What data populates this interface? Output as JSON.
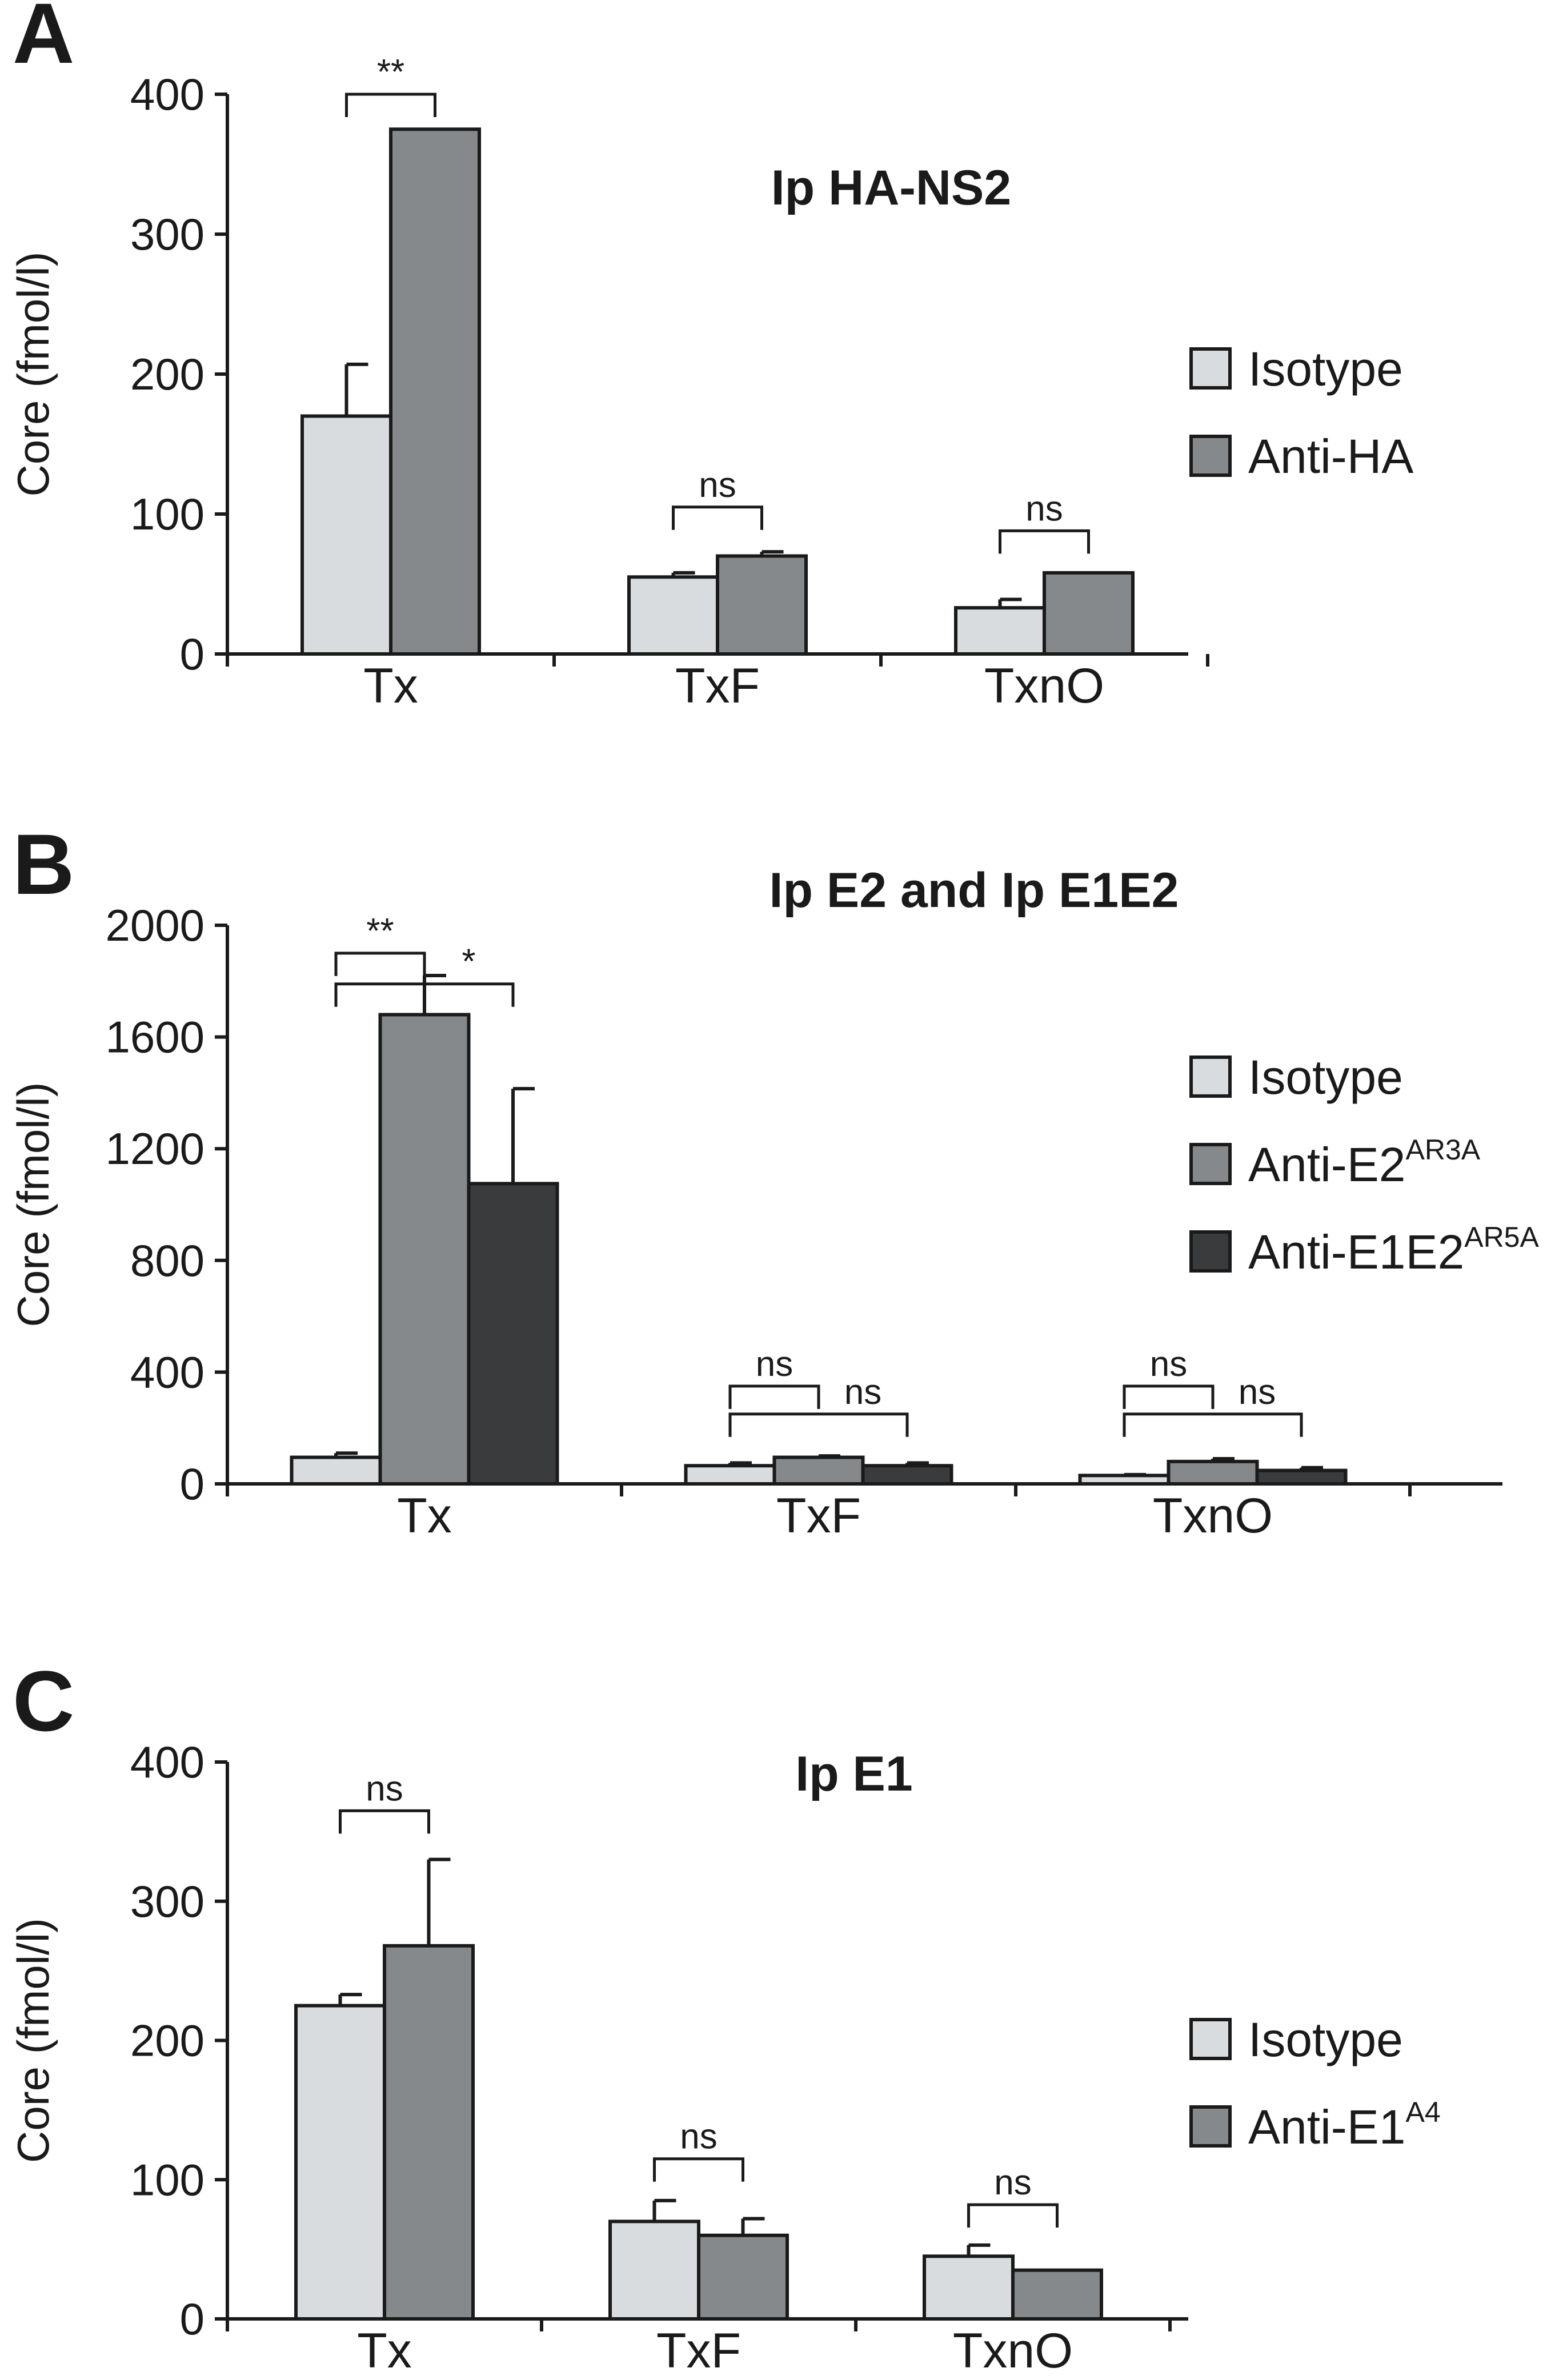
{
  "colors": {
    "isotype": "#d9dcde",
    "anti1": "#86898c",
    "anti2": "#3a3b3d",
    "ink": "#1a1a1a"
  },
  "chart_data": [
    {
      "panel": "A",
      "type": "bar",
      "title": "Ip HA-NS2",
      "ylabel": "Core (fmol/l)",
      "xlabel": "",
      "ylim": [
        0,
        400
      ],
      "yticks": [
        0,
        100,
        200,
        300,
        400
      ],
      "categories": [
        "Tx",
        "TxF",
        "TxnO"
      ],
      "series": [
        {
          "name": "Isotype",
          "sup": "",
          "color": "#d9dcde",
          "values": [
            170,
            55,
            33
          ],
          "errors": [
            37,
            3,
            6
          ]
        },
        {
          "name": "Anti-HA",
          "sup": "",
          "color": "#86898c",
          "values": [
            375,
            70,
            58
          ],
          "errors": [
            0,
            3,
            0
          ]
        }
      ],
      "annotations": [
        {
          "category": 0,
          "from": 0,
          "to": 1,
          "label": "**",
          "value": 400
        },
        {
          "category": 1,
          "from": 0,
          "to": 1,
          "label": "ns",
          "value": 105
        },
        {
          "category": 2,
          "from": 0,
          "to": 1,
          "label": "ns",
          "value": 88
        }
      ]
    },
    {
      "panel": "B",
      "type": "bar",
      "title": "Ip E2 and Ip E1E2",
      "ylabel": "Core (fmol/l)",
      "xlabel": "",
      "ylim": [
        0,
        2000
      ],
      "yticks": [
        0,
        400,
        800,
        1200,
        1600,
        2000
      ],
      "categories": [
        "Tx",
        "TxF",
        "TxnO"
      ],
      "series": [
        {
          "name": "Isotype",
          "sup": "",
          "color": "#d9dcde",
          "values": [
            95,
            65,
            30
          ],
          "errors": [
            15,
            10,
            3
          ]
        },
        {
          "name": "Anti-E2",
          "sup": "AR3A",
          "color": "#86898c",
          "values": [
            1680,
            95,
            80
          ],
          "errors": [
            140,
            5,
            10
          ]
        },
        {
          "name": "Anti-E1E2",
          "sup": "AR5A",
          "color": "#3a3b3d",
          "values": [
            1075,
            65,
            48
          ],
          "errors": [
            340,
            10,
            10
          ]
        }
      ],
      "annotations": [
        {
          "category": 0,
          "from": 0,
          "to": 1,
          "label": "**",
          "value": 1900
        },
        {
          "category": 0,
          "from": 0,
          "to": 2,
          "label": "*",
          "value": 1790
        },
        {
          "category": 1,
          "from": 0,
          "to": 1,
          "label": "ns",
          "value": 350
        },
        {
          "category": 1,
          "from": 0,
          "to": 2,
          "label": "ns",
          "value": 250
        },
        {
          "category": 2,
          "from": 0,
          "to": 1,
          "label": "ns",
          "value": 350
        },
        {
          "category": 2,
          "from": 0,
          "to": 2,
          "label": "ns",
          "value": 250
        }
      ]
    },
    {
      "panel": "C",
      "type": "bar",
      "title": "Ip E1",
      "ylabel": "Core (fmol/l)",
      "xlabel": "",
      "ylim": [
        0,
        400
      ],
      "yticks": [
        0,
        100,
        200,
        300,
        400
      ],
      "categories": [
        "Tx",
        "TxF",
        "TxnO"
      ],
      "series": [
        {
          "name": "Isotype",
          "sup": "",
          "color": "#d9dcde",
          "values": [
            225,
            70,
            45
          ],
          "errors": [
            8,
            15,
            8
          ]
        },
        {
          "name": "Anti-E1",
          "sup": "A4",
          "color": "#86898c",
          "values": [
            268,
            60,
            35
          ],
          "errors": [
            62,
            12,
            0
          ]
        }
      ],
      "annotations": [
        {
          "category": 0,
          "from": 0,
          "to": 1,
          "label": "ns",
          "value": 365
        },
        {
          "category": 1,
          "from": 0,
          "to": 1,
          "label": "ns",
          "value": 115
        },
        {
          "category": 2,
          "from": 0,
          "to": 1,
          "label": "ns",
          "value": 82
        }
      ]
    }
  ]
}
